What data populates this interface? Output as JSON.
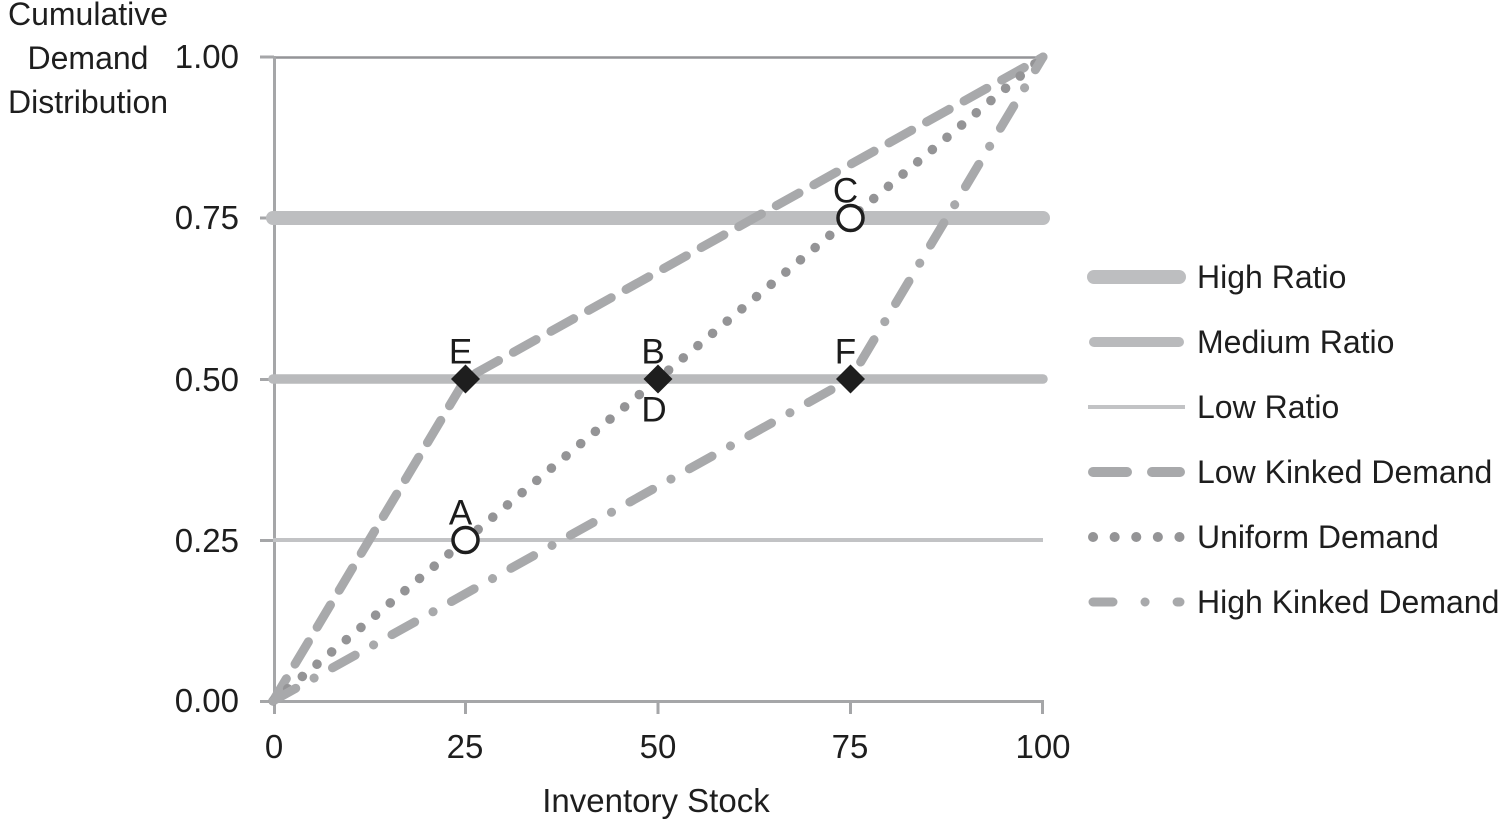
{
  "y_axis_title": {
    "line1": "Cumulative",
    "line2": "Demand",
    "line3": "Distribution"
  },
  "y_axis": {
    "tick_labels": [
      "1.00",
      "0.75",
      "0.50",
      "0.25",
      "0.00"
    ]
  },
  "x_axis": {
    "tick_labels": [
      "0",
      "25",
      "50",
      "75",
      "100"
    ],
    "title": "Inventory Stock"
  },
  "legend": {
    "items": [
      {
        "label": "High Ratio",
        "swatch": "solid-thick"
      },
      {
        "label": "Medium Ratio",
        "swatch": "solid-medium"
      },
      {
        "label": "Low Ratio",
        "swatch": "solid-thin"
      },
      {
        "label": "Low Kinked Demand",
        "swatch": "dashed"
      },
      {
        "label": "Uniform Demand",
        "swatch": "dotted"
      },
      {
        "label": "High Kinked Demand",
        "swatch": "dash-dot"
      }
    ]
  },
  "colors": {
    "axis": "#a5a6a8",
    "top_gridline": "#939497",
    "high_ratio_line": "#bdbec0",
    "medium_ratio_line": "#b9babc",
    "low_ratio_line": "#c2c3c5",
    "kinked_demand_lines": "#a8a9ab",
    "uniform_demand_dots": "#949496",
    "marker_black": "#1e1e1e",
    "text": "#1c1c1c",
    "background": "#ffffff"
  },
  "chart_data": {
    "type": "line",
    "title": "",
    "xlabel": "Inventory Stock",
    "ylabel": "Cumulative Demand Distribution",
    "xlim": [
      0,
      100
    ],
    "ylim": [
      0,
      1
    ],
    "x_ticks": [
      0,
      25,
      50,
      75,
      100
    ],
    "y_ticks": [
      0.0,
      0.25,
      0.5,
      0.75,
      1.0
    ],
    "grid": false,
    "legend_position": "right",
    "series": [
      {
        "name": "High Ratio",
        "style": "solid-thick",
        "points": [
          [
            0,
            0.75
          ],
          [
            100,
            0.75
          ]
        ]
      },
      {
        "name": "Medium Ratio",
        "style": "solid-medium",
        "points": [
          [
            0,
            0.5
          ],
          [
            100,
            0.5
          ]
        ]
      },
      {
        "name": "Low Ratio",
        "style": "solid-thin",
        "points": [
          [
            0,
            0.25
          ],
          [
            100,
            0.25
          ]
        ]
      },
      {
        "name": "Low Kinked Demand",
        "style": "dashed",
        "points": [
          [
            0,
            0
          ],
          [
            25,
            0.5
          ],
          [
            100,
            1
          ]
        ]
      },
      {
        "name": "Uniform Demand",
        "style": "dotted",
        "points": [
          [
            0,
            0
          ],
          [
            100,
            1
          ]
        ]
      },
      {
        "name": "High Kinked Demand",
        "style": "dash-dot",
        "points": [
          [
            0,
            0
          ],
          [
            75,
            0.5
          ],
          [
            100,
            1
          ]
        ]
      }
    ],
    "annotations": [
      {
        "label": "A",
        "x": 25,
        "y": 0.25,
        "marker": "open-circle",
        "label_side": "above"
      },
      {
        "label": "B",
        "x": 50,
        "y": 0.5,
        "marker": "filled-diamond",
        "label_side": "above"
      },
      {
        "label": "C",
        "x": 75,
        "y": 0.75,
        "marker": "open-circle",
        "label_side": "above"
      },
      {
        "label": "D",
        "x": 50,
        "y": 0.5,
        "marker": "none",
        "label_side": "below"
      },
      {
        "label": "E",
        "x": 25,
        "y": 0.5,
        "marker": "filled-diamond",
        "label_side": "above"
      },
      {
        "label": "F",
        "x": 75,
        "y": 0.5,
        "marker": "filled-diamond",
        "label_side": "above"
      }
    ]
  }
}
